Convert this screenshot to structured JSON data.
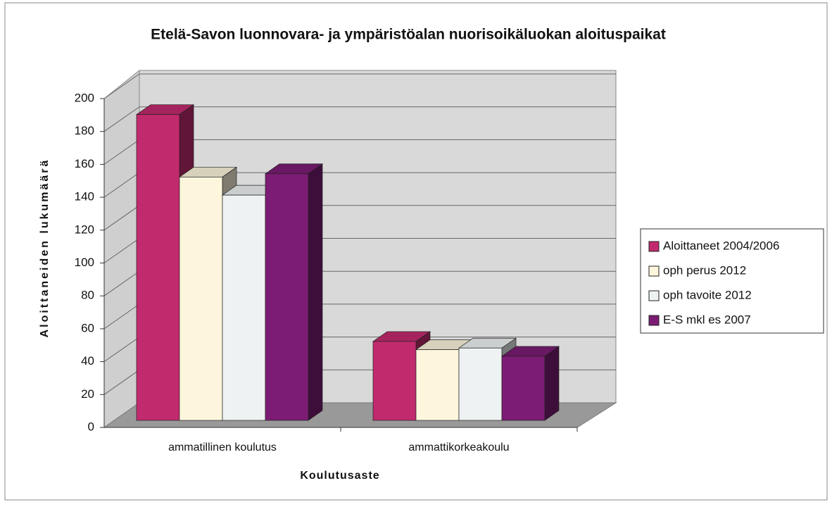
{
  "chart_data": {
    "type": "bar3d",
    "title": "Etelä-Savon luonnovara- ja ympäristöalan nuorisoikäluokan aloituspaikat",
    "x_label": "Koulutusaste",
    "y_label": "Aloittaneiden lukumäärä",
    "categories": [
      "ammatillinen koulutus",
      "ammattikorkeakoulu"
    ],
    "series": [
      {
        "name": "Aloittaneet 2004/2006",
        "color": "#c22a6e",
        "values": [
          186,
          48
        ]
      },
      {
        "name": "oph perus 2012",
        "color": "#fdf6dc",
        "values": [
          148,
          43
        ]
      },
      {
        "name": "oph tavoite 2012",
        "color": "#eef2f2",
        "values": [
          137,
          44
        ]
      },
      {
        "name": "E-S mkl es 2007",
        "color": "#7c1c74",
        "values": [
          150,
          39
        ]
      }
    ],
    "ylim": [
      0,
      200
    ],
    "yticks": [
      0,
      20,
      40,
      60,
      80,
      100,
      120,
      140,
      160,
      180,
      200
    ],
    "grid": true,
    "legend": "right"
  }
}
